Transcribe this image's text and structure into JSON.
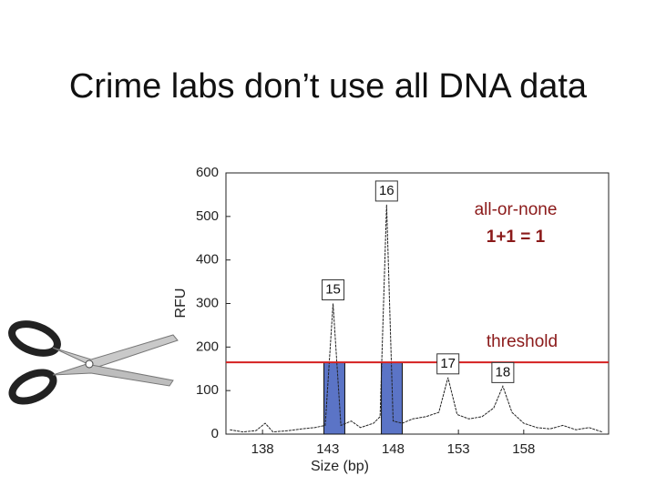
{
  "title": "Crime labs don’t use all DNA data",
  "chart_data": {
    "type": "line",
    "xlabel": "Size (bp)",
    "ylabel": "RFU",
    "xlim": [
      135.2,
      164.5
    ],
    "xticks": [
      138,
      143,
      148,
      153,
      158
    ],
    "ylim": [
      0,
      600
    ],
    "yticks": [
      0,
      100,
      200,
      300,
      400,
      500,
      600
    ],
    "trace": {
      "color": "#222222",
      "x": [
        135.5,
        136.5,
        137.5,
        138.2,
        138.8,
        140,
        141,
        142,
        142.8,
        143.4,
        144,
        144.8,
        145.5,
        146.5,
        147.0,
        147.5,
        148.0,
        148.7,
        149.5,
        150.5,
        151.5,
        152.2,
        152.9,
        153.8,
        154.8,
        155.7,
        156.4,
        157.1,
        158,
        159,
        160,
        161,
        162,
        163,
        164
      ],
      "values": [
        10,
        5,
        8,
        25,
        5,
        8,
        12,
        15,
        20,
        300,
        20,
        30,
        15,
        25,
        40,
        527,
        30,
        25,
        35,
        40,
        50,
        130,
        45,
        35,
        40,
        60,
        110,
        50,
        25,
        15,
        12,
        20,
        10,
        15,
        5
      ]
    },
    "peaks": [
      {
        "label": "15",
        "x": 143.4,
        "value": 300
      },
      {
        "label": "16",
        "x": 147.5,
        "value": 527
      },
      {
        "label": "17",
        "x": 152.2,
        "value": 130
      },
      {
        "label": "18",
        "x": 156.4,
        "value": 110
      }
    ],
    "threshold": {
      "value": 165,
      "label": "threshold",
      "color": "#d42020"
    },
    "bars": {
      "color": "#5b74c6",
      "edges": [
        [
          142.7,
          144.3
        ],
        [
          147.1,
          148.7
        ]
      ]
    },
    "annotations": [
      "all-or-none",
      "1+1 = 1"
    ]
  }
}
